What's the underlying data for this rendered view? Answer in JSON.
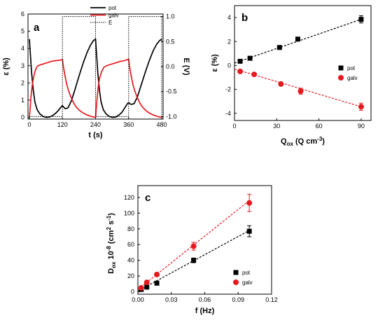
{
  "colors": {
    "pot": "#000000",
    "galv": "#e8191e",
    "E": "#000000",
    "frame": "#000000"
  },
  "chart_data": [
    {
      "type": "line",
      "panel_label": "a",
      "xlabel": "t (s)",
      "ylabel": "ε (%)",
      "y2label": "E (V)",
      "xlim": [
        -5,
        485
      ],
      "ylim": [
        -0.1,
        6
      ],
      "y2lim": [
        -1.05,
        1.05
      ],
      "xticks": [
        0,
        120,
        240,
        360,
        480
      ],
      "yticks": [
        0,
        1,
        2,
        3,
        4,
        5,
        6
      ],
      "y2ticks": [
        -1.0,
        -0.5,
        0.0,
        0.5,
        1.0
      ],
      "ytick_labels": [
        "0",
        "1",
        "2",
        "3",
        "4",
        "5",
        "6"
      ],
      "y2tick_labels": [
        "-1.0",
        "-0.5",
        "0.0",
        "0.5",
        "1.0"
      ],
      "legend_position": "top-right",
      "series": [
        {
          "name": "pot",
          "axis": "left",
          "style": "solid",
          "x": [
            0,
            4,
            8,
            14,
            20,
            28,
            38,
            50,
            62,
            74,
            86,
            96,
            104,
            110,
            115,
            118,
            120,
            124,
            130,
            140,
            152,
            165,
            180,
            195,
            210,
            222,
            232,
            238,
            240,
            244,
            248,
            254,
            260,
            268,
            278,
            290,
            302,
            314,
            326,
            336,
            344,
            350,
            355,
            358,
            360,
            364,
            370,
            380,
            392,
            405,
            420,
            435,
            450,
            462,
            472,
            478,
            480
          ],
          "y": [
            4.55,
            3.6,
            2.6,
            1.6,
            0.9,
            0.45,
            0.2,
            0.05,
            0.0,
            0.02,
            0.12,
            0.25,
            0.38,
            0.5,
            0.6,
            0.65,
            0.68,
            0.6,
            0.5,
            0.55,
            0.95,
            1.6,
            2.4,
            3.15,
            3.8,
            4.2,
            4.45,
            4.52,
            4.55,
            3.6,
            2.6,
            1.6,
            0.9,
            0.45,
            0.2,
            0.05,
            0.0,
            0.02,
            0.15,
            0.3,
            0.5,
            0.65,
            0.78,
            0.84,
            0.85,
            0.8,
            0.75,
            0.8,
            1.2,
            1.85,
            2.6,
            3.3,
            3.9,
            4.25,
            4.45,
            4.52,
            4.55
          ]
        },
        {
          "name": "galv",
          "axis": "left",
          "style": "solid",
          "x": [
            0,
            3,
            6,
            10,
            15,
            20,
            26,
            32,
            40,
            50,
            60,
            70,
            80,
            90,
            100,
            110,
            120,
            123,
            126,
            130,
            135,
            142,
            150,
            160,
            170,
            182,
            195,
            210,
            225,
            240,
            243,
            246,
            250,
            255,
            262,
            270,
            280,
            290,
            300,
            310,
            320,
            330,
            340,
            350,
            360,
            363,
            366,
            370,
            375,
            382,
            390,
            400,
            410,
            422,
            435,
            450,
            465,
            480
          ],
          "y": [
            0.0,
            0.6,
            1.2,
            1.8,
            2.3,
            2.65,
            2.9,
            3.0,
            3.05,
            3.1,
            3.15,
            3.2,
            3.25,
            3.28,
            3.3,
            3.32,
            3.35,
            3.0,
            2.7,
            2.35,
            1.95,
            1.55,
            1.2,
            0.85,
            0.6,
            0.4,
            0.25,
            0.13,
            0.05,
            0.0,
            0.6,
            1.2,
            1.8,
            2.3,
            2.65,
            2.9,
            3.0,
            3.05,
            3.1,
            3.15,
            3.2,
            3.25,
            3.28,
            3.32,
            3.38,
            3.0,
            2.7,
            2.35,
            1.95,
            1.55,
            1.2,
            0.85,
            0.6,
            0.4,
            0.25,
            0.13,
            0.05,
            0.0
          ]
        },
        {
          "name": "E",
          "axis": "right",
          "style": "dotted",
          "x": [
            0,
            120,
            120,
            240,
            240,
            360,
            360,
            480,
            480
          ],
          "y": [
            -1.0,
            -1.0,
            1.0,
            1.0,
            -1.0,
            -1.0,
            1.0,
            1.0,
            -1.0
          ]
        }
      ]
    },
    {
      "type": "scatter",
      "panel_label": "b",
      "xlabel": "Q",
      "xlabel_sub": "ox",
      "xlabel_tail": " (Q cm",
      "xlabel_sup": "-3",
      "xlabel_close": ")",
      "ylabel": "ε (%)",
      "xlim": [
        0,
        97
      ],
      "ylim": [
        -4.6,
        5.0
      ],
      "xticks": [
        0,
        30,
        60,
        90
      ],
      "yticks": [
        -4,
        -2,
        0,
        2,
        4
      ],
      "xtick_labels": [
        "0",
        "30",
        "60",
        "90"
      ],
      "ytick_labels": [
        "-4",
        "-2",
        "0",
        "2",
        "4"
      ],
      "legend_position": "right",
      "series": [
        {
          "name": "pot",
          "marker": "square",
          "x": [
            4,
            11,
            32,
            45,
            90
          ],
          "y": [
            0.35,
            0.6,
            1.5,
            2.2,
            3.85
          ],
          "err": [
            0.08,
            0.1,
            0.1,
            0.15,
            0.3
          ],
          "fit": [
            [
              0,
              0.2
            ],
            [
              90,
              3.85
            ]
          ]
        },
        {
          "name": "galv",
          "marker": "circle",
          "x": [
            4,
            14,
            33,
            47,
            90
          ],
          "y": [
            -0.5,
            -0.75,
            -1.55,
            -2.15,
            -3.45
          ],
          "err": [
            0.08,
            0.1,
            0.15,
            0.25,
            0.3
          ],
          "fit": [
            [
              0,
              -0.3
            ],
            [
              90,
              -3.45
            ]
          ]
        }
      ]
    },
    {
      "type": "scatter",
      "panel_label": "c",
      "xlabel": "f (Hz)",
      "ylabel": "D",
      "ylabel_sub": "ox",
      "ylabel_mid": " 10",
      "ylabel_sup": "-8",
      "ylabel_tail": " (cm",
      "ylabel_sup2": "2",
      "ylabel_mid2": " s",
      "ylabel_sup3": "-1",
      "ylabel_close": ")",
      "xlim": [
        0,
        0.12
      ],
      "ylim": [
        -3,
        135
      ],
      "xticks": [
        0.0,
        0.03,
        0.06,
        0.09,
        0.12
      ],
      "yticks": [
        0,
        20,
        40,
        60,
        80,
        100,
        120
      ],
      "xtick_labels": [
        "0.00",
        "0.03",
        "0.06",
        "0.09",
        "0.12"
      ],
      "ytick_labels": [
        "0",
        "20",
        "40",
        "60",
        "80",
        "100",
        "120"
      ],
      "legend_position": "bottom-right",
      "series": [
        {
          "name": "pot",
          "marker": "square",
          "x": [
            0.003,
            0.008,
            0.017,
            0.05,
            0.1
          ],
          "y": [
            3,
            6,
            11,
            40,
            77
          ],
          "err": [
            0,
            2,
            2,
            3,
            7
          ],
          "fit": [
            [
              0,
              1
            ],
            [
              0.1,
              78
            ]
          ]
        },
        {
          "name": "galv",
          "marker": "circle",
          "x": [
            0.003,
            0.008,
            0.017,
            0.05,
            0.1
          ],
          "y": [
            5,
            12,
            22,
            58,
            113
          ],
          "err": [
            0,
            2,
            2,
            5,
            11
          ],
          "fit": [
            [
              0,
              3
            ],
            [
              0.1,
              116
            ]
          ]
        }
      ]
    }
  ]
}
